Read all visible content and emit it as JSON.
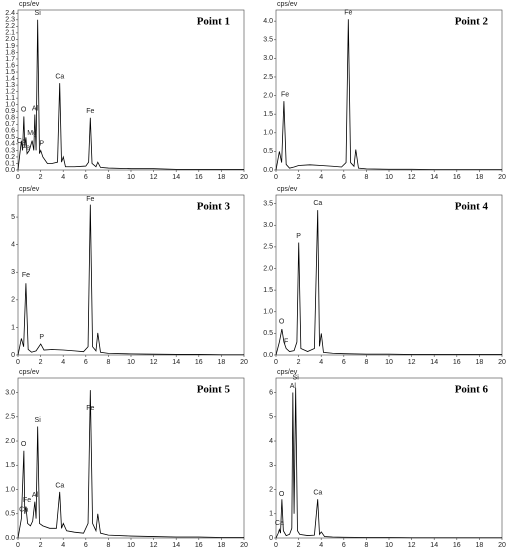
{
  "chart_data": [
    {
      "type": "line",
      "title": "Point 1",
      "ylabel": "cps/ev",
      "color": "#000000",
      "x": [
        0,
        0.2,
        0.3,
        0.4,
        0.52,
        0.6,
        0.7,
        0.8,
        1.0,
        1.25,
        1.4,
        1.49,
        1.6,
        1.74,
        1.9,
        2.01,
        2.2,
        2.6,
        3.0,
        3.5,
        3.69,
        3.85,
        4.01,
        4.2,
        5,
        6,
        6.25,
        6.4,
        6.55,
        6.9,
        7.06,
        7.3,
        8,
        10,
        12,
        14,
        16,
        18,
        20
      ],
      "values": [
        0,
        0.3,
        0.45,
        0.3,
        0.82,
        0.35,
        0.5,
        0.25,
        0.3,
        0.45,
        0.3,
        0.85,
        0.3,
        2.3,
        0.25,
        0.3,
        0.2,
        0.1,
        0.1,
        0.12,
        1.33,
        0.12,
        0.2,
        0.05,
        0.05,
        0.06,
        0.12,
        0.8,
        0.1,
        0.05,
        0.12,
        0.04,
        0.03,
        0.02,
        0.02,
        0.01,
        0.01,
        0.01,
        0.01
      ],
      "xlim": [
        0,
        20
      ],
      "xticks": [
        0,
        2,
        4,
        6,
        8,
        10,
        12,
        14,
        16,
        18,
        20
      ],
      "ylim": [
        0,
        2.45
      ],
      "yticks": [
        {
          "value": 0,
          "label": "0.0"
        },
        0.1,
        0.2,
        0.3,
        0.4,
        0.5,
        0.6,
        0.7,
        0.8,
        0.9,
        {
          "value": 1,
          "label": "1.0"
        },
        1.1,
        1.2,
        1.3,
        1.4,
        1.5,
        1.6,
        1.7,
        1.8,
        1.9,
        {
          "value": 2,
          "label": "2.0"
        },
        2.1,
        2.2,
        2.3,
        2.4
      ],
      "annotations": [
        {
          "text": "O",
          "x": 0.5,
          "y": 0.86
        },
        {
          "text": "Ca",
          "x": 0.3,
          "y": 0.38
        },
        {
          "text": "Fe",
          "x": 0.7,
          "y": 0.28
        },
        {
          "text": "Al",
          "x": 1.5,
          "y": 0.88
        },
        {
          "text": "Mg",
          "x": 1.25,
          "y": 0.5
        },
        {
          "text": "P",
          "x": 2.1,
          "y": 0.34
        },
        {
          "text": "Si",
          "x": 1.74,
          "y": 2.34
        },
        {
          "text": "Ca",
          "x": 3.7,
          "y": 1.37
        },
        {
          "text": "Fe",
          "x": 6.4,
          "y": 0.84
        }
      ]
    },
    {
      "type": "line",
      "title": "Point 2",
      "ylabel": "cps/ev",
      "color": "#000000",
      "x": [
        0,
        0.3,
        0.5,
        0.7,
        0.9,
        1.2,
        1.6,
        2,
        3,
        4,
        5,
        5.8,
        6.2,
        6.4,
        6.6,
        6.9,
        7.06,
        7.3,
        8,
        10,
        12,
        14,
        16,
        18,
        20
      ],
      "values": [
        0,
        0.5,
        0.2,
        1.85,
        0.15,
        0.05,
        0.08,
        0.12,
        0.14,
        0.12,
        0.1,
        0.08,
        0.2,
        4.05,
        0.2,
        0.1,
        0.55,
        0.05,
        0.03,
        0.02,
        0.02,
        0.01,
        0.01,
        0.01,
        0.01
      ],
      "xlim": [
        0,
        20
      ],
      "xticks": [
        0,
        2,
        4,
        6,
        8,
        10,
        12,
        14,
        16,
        18,
        20
      ],
      "ylim": [
        0,
        4.3
      ],
      "yticks": [
        {
          "value": 0,
          "label": "0.0"
        },
        0.5,
        {
          "value": 1,
          "label": "1.0"
        },
        1.5,
        {
          "value": 2,
          "label": "2.0"
        },
        2.5,
        {
          "value": 3,
          "label": "3.0"
        },
        3.5,
        {
          "value": 4,
          "label": "4.0"
        }
      ],
      "annotations": [
        {
          "text": "Fe",
          "x": 0.8,
          "y": 1.92
        },
        {
          "text": "Fe",
          "x": 6.4,
          "y": 4.12
        }
      ]
    },
    {
      "type": "line",
      "title": "Point 3",
      "ylabel": "cps/ev",
      "color": "#000000",
      "x": [
        0,
        0.3,
        0.5,
        0.7,
        0.9,
        1.2,
        1.6,
        2.01,
        2.3,
        3,
        4,
        5,
        5.8,
        6.2,
        6.4,
        6.6,
        6.9,
        7.06,
        7.3,
        8,
        10,
        12,
        14,
        16,
        18,
        20
      ],
      "values": [
        0,
        0.6,
        0.3,
        2.6,
        0.2,
        0.1,
        0.15,
        0.4,
        0.18,
        0.2,
        0.18,
        0.15,
        0.12,
        0.3,
        5.45,
        0.3,
        0.15,
        0.8,
        0.1,
        0.06,
        0.04,
        0.03,
        0.02,
        0.02,
        0.01,
        0.01
      ],
      "xlim": [
        0,
        20
      ],
      "xticks": [
        0,
        2,
        4,
        6,
        8,
        10,
        12,
        14,
        16,
        18,
        20
      ],
      "ylim": [
        0,
        5.8
      ],
      "yticks": [
        0,
        1,
        2,
        3,
        4,
        5
      ],
      "annotations": [
        {
          "text": "Fe",
          "x": 0.7,
          "y": 2.75
        },
        {
          "text": "P",
          "x": 2.1,
          "y": 0.5
        },
        {
          "text": "Fe",
          "x": 6.4,
          "y": 5.5
        }
      ]
    },
    {
      "type": "line",
      "title": "Point 4",
      "ylabel": "cps/ev",
      "color": "#000000",
      "x": [
        0,
        0.3,
        0.52,
        0.7,
        0.9,
        1.2,
        1.6,
        1.85,
        2.01,
        2.2,
        2.8,
        3.4,
        3.69,
        3.85,
        4.01,
        4.2,
        5,
        6,
        8,
        10,
        12,
        14,
        16,
        18,
        20
      ],
      "values": [
        0,
        0.3,
        0.6,
        0.3,
        0.15,
        0.08,
        0.1,
        0.3,
        2.6,
        0.15,
        0.08,
        0.15,
        3.35,
        0.2,
        0.5,
        0.06,
        0.04,
        0.03,
        0.02,
        0.02,
        0.01,
        0.01,
        0.01,
        0.01,
        0.01
      ],
      "xlim": [
        0,
        20
      ],
      "xticks": [
        0,
        2,
        4,
        6,
        8,
        10,
        12,
        14,
        16,
        18,
        20
      ],
      "ylim": [
        0,
        3.7
      ],
      "yticks": [
        {
          "value": 0,
          "label": "0.0"
        },
        0.5,
        {
          "value": 1,
          "label": "1.0"
        },
        1.5,
        {
          "value": 2,
          "label": "2.0"
        },
        2.5,
        {
          "value": 3,
          "label": "3.0"
        },
        3.5
      ],
      "annotations": [
        {
          "text": "O",
          "x": 0.5,
          "y": 0.68
        },
        {
          "text": "F",
          "x": 0.9,
          "y": 0.22
        },
        {
          "text": "P",
          "x": 2.0,
          "y": 2.66
        },
        {
          "text": "Ca",
          "x": 3.7,
          "y": 3.42
        }
      ]
    },
    {
      "type": "line",
      "title": "Point 5",
      "ylabel": "cps/ev",
      "color": "#000000",
      "x": [
        0,
        0.3,
        0.52,
        0.6,
        0.7,
        0.85,
        1.1,
        1.3,
        1.49,
        1.6,
        1.74,
        1.9,
        2.2,
        2.8,
        3.4,
        3.69,
        3.85,
        4.01,
        4.3,
        5,
        5.8,
        6.2,
        6.4,
        6.6,
        6.9,
        7.06,
        7.3,
        8,
        10,
        12,
        14,
        16,
        18,
        20
      ],
      "values": [
        0,
        0.4,
        1.8,
        0.5,
        0.65,
        0.3,
        0.25,
        0.35,
        0.75,
        0.4,
        2.3,
        0.3,
        0.25,
        0.2,
        0.2,
        0.95,
        0.2,
        0.3,
        0.15,
        0.12,
        0.1,
        0.3,
        3.05,
        0.3,
        0.15,
        0.5,
        0.1,
        0.06,
        0.04,
        0.03,
        0.02,
        0.02,
        0.01,
        0.01
      ],
      "xlim": [
        0,
        20
      ],
      "xticks": [
        0,
        2,
        4,
        6,
        8,
        10,
        12,
        14,
        16,
        18,
        20
      ],
      "ylim": [
        0,
        3.3
      ],
      "yticks": [
        {
          "value": 0,
          "label": "0.0"
        },
        0.5,
        {
          "value": 1,
          "label": "1.0"
        },
        1.5,
        {
          "value": 2,
          "label": "2.0"
        },
        2.5,
        {
          "value": 3,
          "label": "3.0"
        }
      ],
      "annotations": [
        {
          "text": "O",
          "x": 0.5,
          "y": 1.85
        },
        {
          "text": "Fe",
          "x": 0.8,
          "y": 0.7
        },
        {
          "text": "Ca",
          "x": 0.5,
          "y": 0.5
        },
        {
          "text": "Al",
          "x": 1.5,
          "y": 0.8
        },
        {
          "text": "Si",
          "x": 1.74,
          "y": 2.35
        },
        {
          "text": "Ca",
          "x": 3.7,
          "y": 1.0
        },
        {
          "text": "Fe",
          "x": 6.4,
          "y": 2.6
        }
      ]
    },
    {
      "type": "line",
      "title": "Point 6",
      "ylabel": "cps/ev",
      "color": "#000000",
      "x": [
        0,
        0.2,
        0.3,
        0.4,
        0.52,
        0.65,
        0.9,
        1.2,
        1.4,
        1.49,
        1.6,
        1.74,
        1.9,
        2.1,
        2.8,
        3.4,
        3.69,
        3.85,
        4.01,
        4.3,
        5,
        6,
        8,
        10,
        12,
        14,
        16,
        18,
        20
      ],
      "values": [
        0,
        0.2,
        0.35,
        0.2,
        1.6,
        0.3,
        0.1,
        0.15,
        0.4,
        6.0,
        1.0,
        6.2,
        0.3,
        0.15,
        0.1,
        0.12,
        1.6,
        0.15,
        0.25,
        0.06,
        0.04,
        0.03,
        0.02,
        0.02,
        0.01,
        0.01,
        0.01,
        0.01,
        0.01
      ],
      "xlim": [
        0,
        20
      ],
      "xticks": [
        0,
        2,
        4,
        6,
        8,
        10,
        12,
        14,
        16,
        18,
        20
      ],
      "ylim": [
        0,
        6.6
      ],
      "yticks": [
        0,
        1,
        2,
        3,
        4,
        5,
        6
      ],
      "annotations": [
        {
          "text": "Si",
          "x": 1.74,
          "y": 6.45
        },
        {
          "text": "Al",
          "x": 1.49,
          "y": 6.1
        },
        {
          "text": "O",
          "x": 0.5,
          "y": 1.65
        },
        {
          "text": "Ca",
          "x": 0.3,
          "y": 0.45
        },
        {
          "text": "Ca",
          "x": 3.7,
          "y": 1.7
        }
      ]
    }
  ]
}
